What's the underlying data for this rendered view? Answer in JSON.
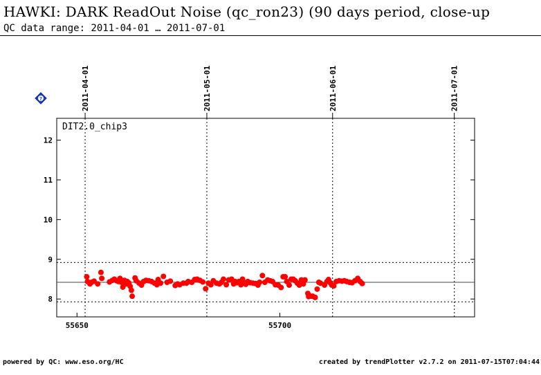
{
  "page": {
    "title": "HAWKI: DARK ReadOut Noise (qc_ron23) (90 days period, close-up",
    "subtitle": "QC data range: 2011-04-01 … 2011-07-01",
    "footer_left": "powered by QC: www.eso.org/HC",
    "footer_right": "created by trendPlotter v2.7.2 on 2011-07-15T07:04:44",
    "help_icon": "help-diamond-icon",
    "colors": {
      "points": "#ff0000",
      "help_icon": "#1a3fd6",
      "axes": "#000000"
    }
  },
  "chart_data": {
    "type": "scatter",
    "panel_label": "DIT2.0_chip3",
    "xlim": [
      55645,
      55748
    ],
    "ylim": [
      7.55,
      12.55
    ],
    "x_ticks": [
      55650,
      55700
    ],
    "y_ticks": [
      8,
      9,
      10,
      11,
      12
    ],
    "date_markers": [
      {
        "label": "2011-04-01",
        "x": 55652
      },
      {
        "label": "2011-05-01",
        "x": 55682
      },
      {
        "label": "2011-06-01",
        "x": 55713
      },
      {
        "label": "2011-07-01",
        "x": 55743
      }
    ],
    "reference_line": 8.42,
    "limit_lines": [
      7.93,
      8.92
    ],
    "grid": false,
    "series": [
      {
        "color": "#ff0000",
        "points": [
          [
            55652.4,
            8.56
          ],
          [
            55652.6,
            8.44
          ],
          [
            55653.2,
            8.38
          ],
          [
            55653.6,
            8.42
          ],
          [
            55654.2,
            8.45
          ],
          [
            55655.1,
            8.38
          ],
          [
            55655.9,
            8.67
          ],
          [
            55656.1,
            8.52
          ],
          [
            55658.0,
            8.43
          ],
          [
            55658.7,
            8.47
          ],
          [
            55659.2,
            8.5
          ],
          [
            55659.8,
            8.46
          ],
          [
            55660.2,
            8.44
          ],
          [
            55660.6,
            8.52
          ],
          [
            55661.0,
            8.42
          ],
          [
            55661.3,
            8.3
          ],
          [
            55661.7,
            8.47
          ],
          [
            55662.1,
            8.38
          ],
          [
            55662.4,
            8.44
          ],
          [
            55662.8,
            8.4
          ],
          [
            55663.1,
            8.32
          ],
          [
            55663.4,
            8.22
          ],
          [
            55663.6,
            8.07
          ],
          [
            55664.3,
            8.53
          ],
          [
            55664.6,
            8.46
          ],
          [
            55665.3,
            8.4
          ],
          [
            55665.9,
            8.35
          ],
          [
            55666.4,
            8.44
          ],
          [
            55667.0,
            8.47
          ],
          [
            55667.7,
            8.46
          ],
          [
            55668.4,
            8.44
          ],
          [
            55669.1,
            8.4
          ],
          [
            55669.7,
            8.36
          ],
          [
            55670.0,
            8.49
          ],
          [
            55670.6,
            8.4
          ],
          [
            55671.3,
            8.57
          ],
          [
            55672.2,
            8.42
          ],
          [
            55673.0,
            8.45
          ],
          [
            55674.2,
            8.34
          ],
          [
            55674.8,
            8.38
          ],
          [
            55675.3,
            8.36
          ],
          [
            55676.2,
            8.4
          ],
          [
            55677.0,
            8.4
          ],
          [
            55677.4,
            8.44
          ],
          [
            55678.3,
            8.42
          ],
          [
            55679.0,
            8.49
          ],
          [
            55679.6,
            8.5
          ],
          [
            55680.3,
            8.47
          ],
          [
            55681.0,
            8.43
          ],
          [
            55681.7,
            8.26
          ],
          [
            55682.4,
            8.4
          ],
          [
            55683.0,
            8.36
          ],
          [
            55683.6,
            8.46
          ],
          [
            55684.4,
            8.4
          ],
          [
            55685.1,
            8.38
          ],
          [
            55685.6,
            8.42
          ],
          [
            55686.1,
            8.5
          ],
          [
            55686.8,
            8.36
          ],
          [
            55687.4,
            8.48
          ],
          [
            55688.1,
            8.5
          ],
          [
            55688.6,
            8.38
          ],
          [
            55689.0,
            8.44
          ],
          [
            55689.4,
            8.41
          ],
          [
            55689.9,
            8.44
          ],
          [
            55690.4,
            8.36
          ],
          [
            55690.8,
            8.5
          ],
          [
            55691.2,
            8.41
          ],
          [
            55691.6,
            8.37
          ],
          [
            55692.1,
            8.44
          ],
          [
            55692.7,
            8.41
          ],
          [
            55693.4,
            8.4
          ],
          [
            55694.0,
            8.39
          ],
          [
            55694.6,
            8.35
          ],
          [
            55695.0,
            8.42
          ],
          [
            55695.7,
            8.59
          ],
          [
            55696.3,
            8.42
          ],
          [
            55697.0,
            8.48
          ],
          [
            55697.6,
            8.46
          ],
          [
            55698.2,
            8.44
          ],
          [
            55698.9,
            8.36
          ],
          [
            55699.6,
            8.35
          ],
          [
            55700.3,
            8.29
          ],
          [
            55700.8,
            8.56
          ],
          [
            55701.3,
            8.56
          ],
          [
            55701.7,
            8.44
          ],
          [
            55702.3,
            8.35
          ],
          [
            55702.8,
            8.5
          ],
          [
            55703.3,
            8.5
          ],
          [
            55703.8,
            8.46
          ],
          [
            55704.3,
            8.4
          ],
          [
            55704.8,
            8.35
          ],
          [
            55705.3,
            8.48
          ],
          [
            55705.8,
            8.38
          ],
          [
            55706.2,
            8.48
          ],
          [
            55706.9,
            8.14
          ],
          [
            55707.1,
            8.06
          ],
          [
            55707.6,
            8.07
          ],
          [
            55708.1,
            8.07
          ],
          [
            55708.7,
            8.04
          ],
          [
            55709.2,
            8.25
          ],
          [
            55709.6,
            8.42
          ],
          [
            55710.0,
            8.4
          ],
          [
            55711.0,
            8.35
          ],
          [
            55711.6,
            8.44
          ],
          [
            55712.0,
            8.49
          ],
          [
            55712.4,
            8.41
          ],
          [
            55712.8,
            8.35
          ],
          [
            55713.3,
            8.33
          ],
          [
            55713.9,
            8.44
          ],
          [
            55714.6,
            8.46
          ],
          [
            55715.3,
            8.45
          ],
          [
            55715.9,
            8.46
          ],
          [
            55716.5,
            8.44
          ],
          [
            55717.2,
            8.42
          ],
          [
            55717.8,
            8.41
          ],
          [
            55718.5,
            8.46
          ],
          [
            55719.2,
            8.52
          ],
          [
            55719.8,
            8.44
          ],
          [
            55720.3,
            8.39
          ]
        ]
      }
    ]
  }
}
